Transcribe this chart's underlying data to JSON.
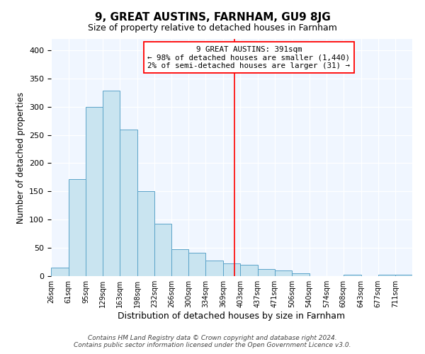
{
  "title": "9, GREAT AUSTINS, FARNHAM, GU9 8JG",
  "subtitle": "Size of property relative to detached houses in Farnham",
  "xlabel": "Distribution of detached houses by size in Farnham",
  "ylabel": "Number of detached properties",
  "bar_labels": [
    "26sqm",
    "61sqm",
    "95sqm",
    "129sqm",
    "163sqm",
    "198sqm",
    "232sqm",
    "266sqm",
    "300sqm",
    "334sqm",
    "369sqm",
    "403sqm",
    "437sqm",
    "471sqm",
    "506sqm",
    "540sqm",
    "574sqm",
    "608sqm",
    "643sqm",
    "677sqm",
    "711sqm"
  ],
  "bar_values": [
    15,
    172,
    300,
    328,
    259,
    151,
    93,
    48,
    42,
    27,
    22,
    20,
    12,
    10,
    5,
    0,
    0,
    3,
    0,
    3,
    2
  ],
  "bar_color": "#c9e4f0",
  "bar_edge_color": "#5ba3c9",
  "ylim": [
    0,
    420
  ],
  "yticks": [
    0,
    50,
    100,
    150,
    200,
    250,
    300,
    350,
    400
  ],
  "property_line_label": "9 GREAT AUSTINS: 391sqm",
  "annotation_line1": "← 98% of detached houses are smaller (1,440)",
  "annotation_line2": "2% of semi-detached houses are larger (31) →",
  "footer1": "Contains HM Land Registry data © Crown copyright and database right 2024.",
  "footer2": "Contains public sector information licensed under the Open Government Licence v3.0.",
  "bin_edges": [
    26,
    61,
    95,
    129,
    163,
    198,
    232,
    266,
    300,
    334,
    369,
    403,
    437,
    471,
    506,
    540,
    574,
    608,
    643,
    677,
    711,
    745
  ],
  "prop_bin_index": 10,
  "grid_color": "#ddeeff",
  "ax_bg_color": "#f0f6ff"
}
